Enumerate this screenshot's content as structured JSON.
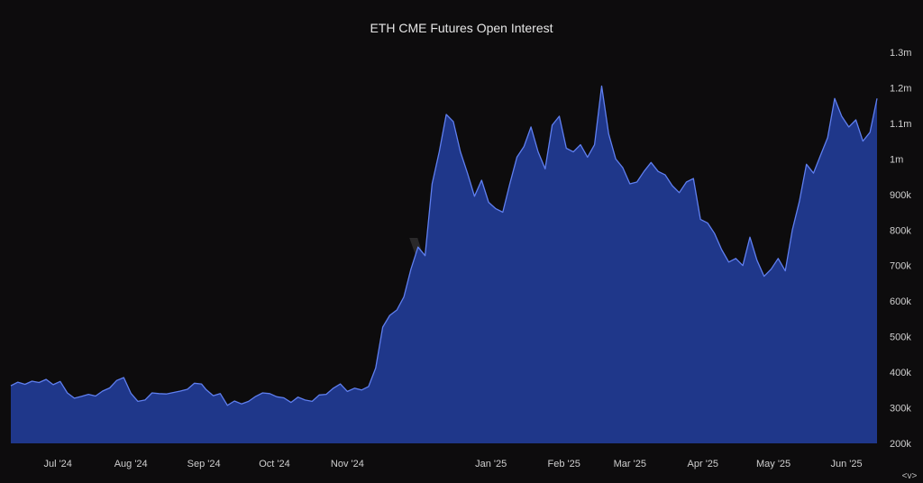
{
  "colors": {
    "background": "#0d0c0d",
    "area_fill": "#1f378a",
    "line": "#5f7ff0",
    "text": "#cfcfcf"
  },
  "watermark": "velo",
  "nav_control": "<v>",
  "chart_data": {
    "type": "area",
    "title": "ETH CME Futures Open Interest",
    "xlabel": "",
    "ylabel": "",
    "ylim": [
      200000,
      1300000
    ],
    "grid": false,
    "legend": "none",
    "y_axis_position": "right",
    "y_ticks": [
      {
        "value": 1300000,
        "label": "1.3m"
      },
      {
        "value": 1200000,
        "label": "1.2m"
      },
      {
        "value": 1100000,
        "label": "1.1m"
      },
      {
        "value": 1000000,
        "label": "1m"
      },
      {
        "value": 900000,
        "label": "900k"
      },
      {
        "value": 800000,
        "label": "800k"
      },
      {
        "value": 700000,
        "label": "700k"
      },
      {
        "value": 600000,
        "label": "600k"
      },
      {
        "value": 500000,
        "label": "500k"
      },
      {
        "value": 400000,
        "label": "400k"
      },
      {
        "value": 300000,
        "label": "300k"
      },
      {
        "value": 200000,
        "label": "200k"
      }
    ],
    "x_ticks": [
      {
        "date": "2024-07-01",
        "label": "Jul '24"
      },
      {
        "date": "2024-08-01",
        "label": "Aug '24"
      },
      {
        "date": "2024-09-01",
        "label": "Sep '24"
      },
      {
        "date": "2024-10-01",
        "label": "Oct '24"
      },
      {
        "date": "2024-11-01",
        "label": "Nov '24"
      },
      {
        "date": "2025-01-01",
        "label": "Jan '25"
      },
      {
        "date": "2025-02-01",
        "label": "Feb '25"
      },
      {
        "date": "2025-03-01",
        "label": "Mar '25"
      },
      {
        "date": "2025-04-01",
        "label": "Apr '25"
      },
      {
        "date": "2025-05-01",
        "label": "May '25"
      },
      {
        "date": "2025-06-01",
        "label": "Jun '25"
      }
    ],
    "series": [
      {
        "points": [
          [
            "2024-06-11",
            362000
          ],
          [
            "2024-06-14",
            372000
          ],
          [
            "2024-06-17",
            366000
          ],
          [
            "2024-06-20",
            375000
          ],
          [
            "2024-06-23",
            371000
          ],
          [
            "2024-06-26",
            380000
          ],
          [
            "2024-06-29",
            365000
          ],
          [
            "2024-07-02",
            374000
          ],
          [
            "2024-07-05",
            342000
          ],
          [
            "2024-07-08",
            327000
          ],
          [
            "2024-07-11",
            332000
          ],
          [
            "2024-07-14",
            338000
          ],
          [
            "2024-07-17",
            333000
          ],
          [
            "2024-07-20",
            347000
          ],
          [
            "2024-07-23",
            356000
          ],
          [
            "2024-07-26",
            377000
          ],
          [
            "2024-07-29",
            385000
          ],
          [
            "2024-08-01",
            341000
          ],
          [
            "2024-08-04",
            318000
          ],
          [
            "2024-08-07",
            322000
          ],
          [
            "2024-08-10",
            342000
          ],
          [
            "2024-08-13",
            340000
          ],
          [
            "2024-08-16",
            339000
          ],
          [
            "2024-08-19",
            343000
          ],
          [
            "2024-08-22",
            347000
          ],
          [
            "2024-08-25",
            352000
          ],
          [
            "2024-08-28",
            369000
          ],
          [
            "2024-08-31",
            367000
          ],
          [
            "2024-09-02",
            351000
          ],
          [
            "2024-09-05",
            334000
          ],
          [
            "2024-09-08",
            340000
          ],
          [
            "2024-09-11",
            307000
          ],
          [
            "2024-09-14",
            319000
          ],
          [
            "2024-09-17",
            311000
          ],
          [
            "2024-09-20",
            318000
          ],
          [
            "2024-09-23",
            332000
          ],
          [
            "2024-09-26",
            342000
          ],
          [
            "2024-09-29",
            340000
          ],
          [
            "2024-10-02",
            331000
          ],
          [
            "2024-10-05",
            328000
          ],
          [
            "2024-10-08",
            315000
          ],
          [
            "2024-10-11",
            330000
          ],
          [
            "2024-10-14",
            322000
          ],
          [
            "2024-10-17",
            318000
          ],
          [
            "2024-10-20",
            336000
          ],
          [
            "2024-10-23",
            338000
          ],
          [
            "2024-10-26",
            355000
          ],
          [
            "2024-10-29",
            367000
          ],
          [
            "2024-11-01",
            346000
          ],
          [
            "2024-11-04",
            355000
          ],
          [
            "2024-11-07",
            350000
          ],
          [
            "2024-11-10",
            360000
          ],
          [
            "2024-11-13",
            412000
          ],
          [
            "2024-11-16",
            527000
          ],
          [
            "2024-11-19",
            560000
          ],
          [
            "2024-11-22",
            575000
          ],
          [
            "2024-11-25",
            612000
          ],
          [
            "2024-11-28",
            690000
          ],
          [
            "2024-12-01",
            752000
          ],
          [
            "2024-12-04",
            728000
          ],
          [
            "2024-12-07",
            930000
          ],
          [
            "2024-12-10",
            1020000
          ],
          [
            "2024-12-13",
            1125000
          ],
          [
            "2024-12-16",
            1105000
          ],
          [
            "2024-12-19",
            1020000
          ],
          [
            "2024-12-22",
            960000
          ],
          [
            "2024-12-25",
            895000
          ],
          [
            "2024-12-28",
            940000
          ],
          [
            "2024-12-31",
            878000
          ],
          [
            "2025-01-03",
            860000
          ],
          [
            "2025-01-06",
            850000
          ],
          [
            "2025-01-09",
            930000
          ],
          [
            "2025-01-12",
            1005000
          ],
          [
            "2025-01-15",
            1035000
          ],
          [
            "2025-01-18",
            1090000
          ],
          [
            "2025-01-21",
            1020000
          ],
          [
            "2025-01-24",
            972000
          ],
          [
            "2025-01-27",
            1095000
          ],
          [
            "2025-01-30",
            1120000
          ],
          [
            "2025-02-02",
            1030000
          ],
          [
            "2025-02-05",
            1020000
          ],
          [
            "2025-02-08",
            1040000
          ],
          [
            "2025-02-11",
            1005000
          ],
          [
            "2025-02-14",
            1040000
          ],
          [
            "2025-02-17",
            1205000
          ],
          [
            "2025-02-20",
            1070000
          ],
          [
            "2025-02-23",
            1000000
          ],
          [
            "2025-02-26",
            975000
          ],
          [
            "2025-03-01",
            930000
          ],
          [
            "2025-03-04",
            935000
          ],
          [
            "2025-03-07",
            965000
          ],
          [
            "2025-03-10",
            990000
          ],
          [
            "2025-03-13",
            965000
          ],
          [
            "2025-03-16",
            955000
          ],
          [
            "2025-03-19",
            925000
          ],
          [
            "2025-03-22",
            905000
          ],
          [
            "2025-03-25",
            935000
          ],
          [
            "2025-03-28",
            945000
          ],
          [
            "2025-03-31",
            830000
          ],
          [
            "2025-04-03",
            820000
          ],
          [
            "2025-04-06",
            790000
          ],
          [
            "2025-04-09",
            745000
          ],
          [
            "2025-04-12",
            710000
          ],
          [
            "2025-04-15",
            720000
          ],
          [
            "2025-04-18",
            700000
          ],
          [
            "2025-04-21",
            780000
          ],
          [
            "2025-04-24",
            715000
          ],
          [
            "2025-04-27",
            670000
          ],
          [
            "2025-04-30",
            690000
          ],
          [
            "2025-05-03",
            720000
          ],
          [
            "2025-05-06",
            685000
          ],
          [
            "2025-05-09",
            800000
          ],
          [
            "2025-05-12",
            880000
          ],
          [
            "2025-05-15",
            985000
          ],
          [
            "2025-05-18",
            960000
          ],
          [
            "2025-05-21",
            1010000
          ],
          [
            "2025-05-24",
            1060000
          ],
          [
            "2025-05-27",
            1170000
          ],
          [
            "2025-05-30",
            1120000
          ],
          [
            "2025-06-02",
            1090000
          ],
          [
            "2025-06-05",
            1110000
          ],
          [
            "2025-06-08",
            1050000
          ],
          [
            "2025-06-11",
            1075000
          ],
          [
            "2025-06-14",
            1170000
          ]
        ]
      }
    ]
  }
}
